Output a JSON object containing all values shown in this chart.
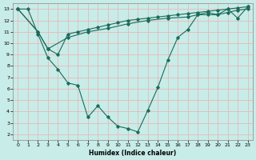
{
  "xlabel": "Humidex (Indice chaleur)",
  "bg_color": "#c8ece8",
  "grid_color": "#e8b8b8",
  "line_color": "#1a6b5a",
  "xlim": [
    -0.5,
    23.5
  ],
  "ylim": [
    1.5,
    13.5
  ],
  "xticks": [
    0,
    1,
    2,
    3,
    4,
    5,
    6,
    7,
    8,
    9,
    10,
    11,
    12,
    13,
    14,
    15,
    16,
    17,
    18,
    19,
    20,
    21,
    22,
    23
  ],
  "yticks": [
    2,
    3,
    4,
    5,
    6,
    7,
    8,
    9,
    10,
    11,
    12,
    13
  ],
  "line1_x": [
    0,
    1,
    2,
    3,
    4,
    5,
    6,
    7,
    8,
    9,
    10,
    11,
    12,
    13,
    14,
    15,
    16,
    17,
    18,
    19,
    20,
    21,
    22,
    23
  ],
  "line1_y": [
    13,
    13,
    10.8,
    8.7,
    7.7,
    6.5,
    6.3,
    3.5,
    4.5,
    3.5,
    2.7,
    2.5,
    2.2,
    4.1,
    6.1,
    8.5,
    10.5,
    11.2,
    12.5,
    12.7,
    12.5,
    13.0,
    12.2,
    13.2
  ],
  "line2_x": [
    0,
    2,
    3,
    4,
    5,
    6,
    7,
    8,
    9,
    10,
    11,
    12,
    13,
    14,
    15,
    16,
    17,
    18,
    19,
    20,
    21,
    22,
    23
  ],
  "line2_y": [
    13,
    11.0,
    9.5,
    9.0,
    10.8,
    11.0,
    11.2,
    11.4,
    11.6,
    11.8,
    12.0,
    12.1,
    12.2,
    12.3,
    12.4,
    12.5,
    12.6,
    12.7,
    12.8,
    12.9,
    13.0,
    13.1,
    13.2
  ],
  "line3_x": [
    0,
    2,
    3,
    5,
    7,
    9,
    11,
    13,
    15,
    17,
    18,
    19,
    20,
    21,
    22,
    23
  ],
  "line3_y": [
    13,
    11.0,
    9.5,
    10.5,
    11.0,
    11.3,
    11.7,
    12.0,
    12.2,
    12.3,
    12.5,
    12.5,
    12.5,
    12.7,
    12.9,
    13.0
  ]
}
